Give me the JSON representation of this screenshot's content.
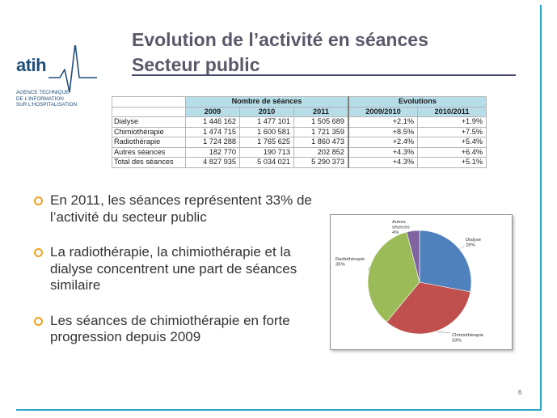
{
  "logo": {
    "word": "atih",
    "subtitle_lines": [
      "AGENCE TECHNIQUE",
      "DE L'INFORMATION",
      "SUR L'HOSPITALISATION"
    ]
  },
  "title": {
    "line1": "Evolution de l’activité en séances",
    "line2": "Secteur public"
  },
  "table": {
    "group_headers": {
      "count": "Nombre de séances",
      "evol": "Evolutions"
    },
    "columns": [
      "2009",
      "2010",
      "2011",
      "2009/2010",
      "2010/2011"
    ],
    "rows": [
      {
        "label": "Dialyse",
        "values": [
          "1 446 162",
          "1 477 101",
          "1 505 689",
          "+2.1%",
          "+1.9%"
        ]
      },
      {
        "label": "Chimiothérapie",
        "values": [
          "1 474 715",
          "1 600 581",
          "1 721 359",
          "+8.5%",
          "+7.5%"
        ]
      },
      {
        "label": "Radiothérapie",
        "values": [
          "1 724 288",
          "1 765 625",
          "1 860 473",
          "+2.4%",
          "+5.4%"
        ]
      },
      {
        "label": "Autres séances",
        "values": [
          "182 770",
          "190 713",
          "202 852",
          "+4.3%",
          "+6.4%"
        ]
      },
      {
        "label": "Total des séances",
        "values": [
          "4 827 935",
          "5 034 021",
          "5 290 373",
          "+4.3%",
          "+5.1%"
        ]
      }
    ]
  },
  "bullets": [
    "En 2011, les séances représentent 33% de l’activité du secteur public",
    "La radiothérapie, la chimiothérapie et la dialyse concentrent une part de séances similaire",
    "Les séances de chimiothérapie en forte progression depuis 2009"
  ],
  "chart_data": {
    "type": "pie",
    "slices": [
      {
        "name": "Dialyse",
        "value": 28,
        "label": "28%",
        "color": "#4f81bd"
      },
      {
        "name": "Chimiothérapie",
        "value": 33,
        "label": "33%",
        "color": "#c0504d"
      },
      {
        "name": "Radiothérapie",
        "value": 35,
        "label": "35%",
        "color": "#9bbb59"
      },
      {
        "name": "Autres séances",
        "value": 4,
        "label": "4%",
        "color": "#8064a2"
      }
    ]
  },
  "page_number": "6",
  "colors": {
    "accent_line": "#2aa7c9",
    "title_text": "#595a69",
    "table_header": "#b6dde8",
    "bullet": "#f0a020",
    "logo": "#1f4e79"
  }
}
